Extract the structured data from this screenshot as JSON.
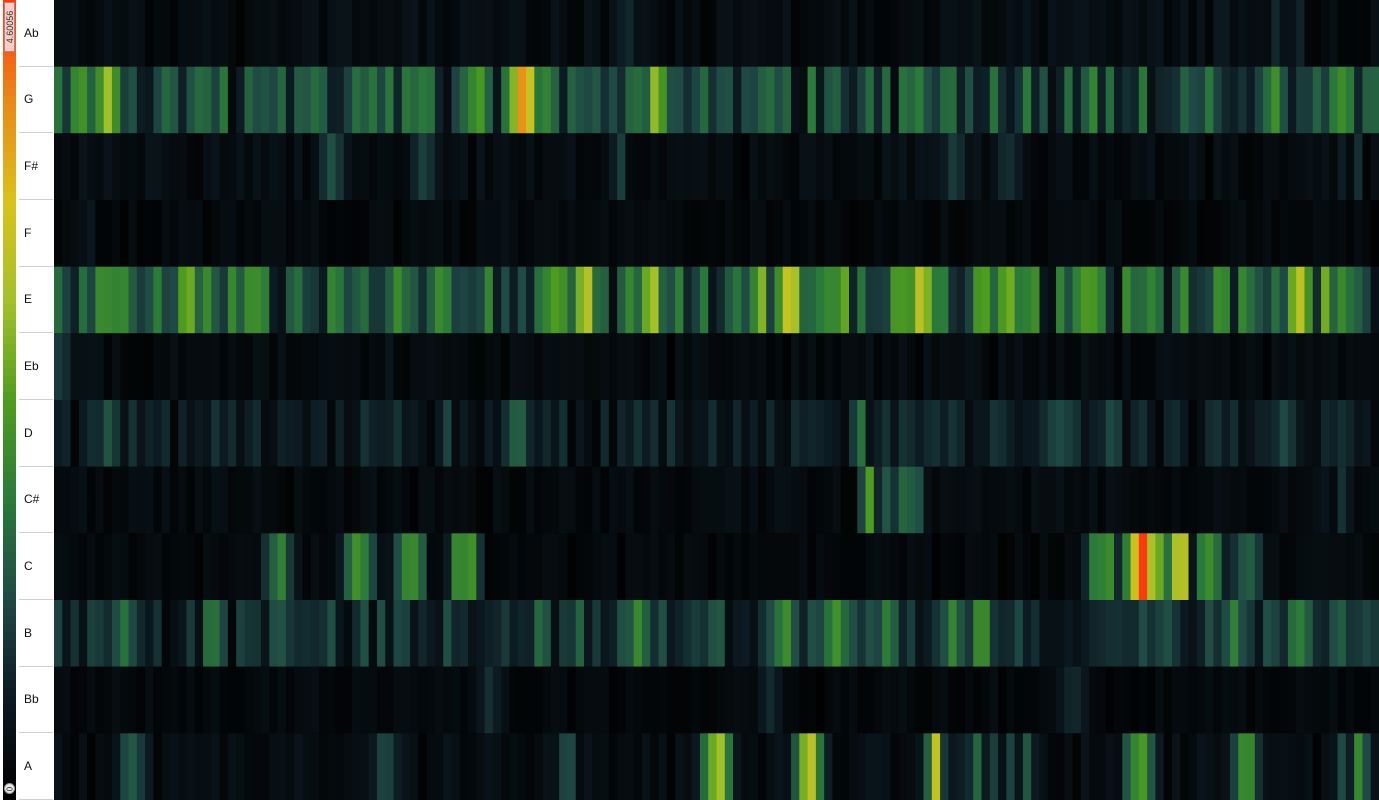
{
  "chart_data": {
    "type": "heatmap",
    "title": "",
    "scale": {
      "min_label": "0",
      "max_label": "4.60056",
      "min": 0,
      "max": 4.60056,
      "colors": [
        "#000000",
        "#0c1a22",
        "#1f4a45",
        "#2a7a3a",
        "#4f9d1e",
        "#a4c12a",
        "#dac21a",
        "#ea8a18",
        "#ff3a10"
      ]
    },
    "rows": [
      "Ab",
      "G",
      "F#",
      "F",
      "E",
      "Eb",
      "D",
      "C#",
      "C",
      "B",
      "Bb",
      "A"
    ],
    "columns": 160,
    "rows_data": {
      "Ab": {
        "base": 0.35,
        "peaks": [
          [
            0.43,
            0.8
          ],
          [
            0.88,
            0.6
          ],
          [
            0.93,
            1.5
          ]
        ]
      },
      "G": {
        "base": 1.4,
        "peaks": [
          [
            0.02,
            2.2
          ],
          [
            0.04,
            2.6
          ],
          [
            0.11,
            1.8
          ],
          [
            0.26,
            2.4
          ],
          [
            0.32,
            2.2
          ],
          [
            0.355,
            3.9
          ],
          [
            0.37,
            2.5
          ],
          [
            0.44,
            2.0
          ],
          [
            0.455,
            2.6
          ],
          [
            0.54,
            1.8
          ],
          [
            0.74,
            2.0
          ],
          [
            0.79,
            2.4
          ],
          [
            0.92,
            2.2
          ],
          [
            0.97,
            2.1
          ]
        ]
      },
      "F#": {
        "base": 0.35,
        "peaks": [
          [
            0.21,
            1.3
          ],
          [
            0.28,
            1.2
          ],
          [
            0.43,
            1.1
          ],
          [
            0.68,
            0.9
          ],
          [
            0.72,
            0.9
          ],
          [
            0.98,
            0.9
          ]
        ]
      },
      "F": {
        "base": 0.25,
        "peaks": [
          [
            0.03,
            0.5
          ],
          [
            0.34,
            0.4
          ],
          [
            0.98,
            0.4
          ]
        ]
      },
      "E": {
        "base": 1.6,
        "peaks": [
          [
            0.06,
            1.4
          ],
          [
            0.1,
            2.6
          ],
          [
            0.15,
            2.6
          ],
          [
            0.38,
            2.9
          ],
          [
            0.4,
            3.1
          ],
          [
            0.45,
            3.0
          ],
          [
            0.53,
            2.2
          ],
          [
            0.54,
            3.2
          ],
          [
            0.555,
            3.4
          ],
          [
            0.6,
            2.4
          ],
          [
            0.64,
            2.6
          ],
          [
            0.655,
            3.5
          ],
          [
            0.7,
            2.5
          ],
          [
            0.72,
            2.8
          ],
          [
            0.74,
            2.2
          ],
          [
            0.78,
            2.6
          ],
          [
            0.82,
            1.7
          ],
          [
            0.88,
            2.2
          ],
          [
            0.94,
            2.9
          ],
          [
            0.955,
            3.1
          ]
        ]
      },
      "Eb": {
        "base": 0.3,
        "peaks": [
          [
            0.005,
            0.9
          ],
          [
            0.26,
            0.6
          ],
          [
            0.62,
            0.4
          ]
        ]
      },
      "D": {
        "base": 0.7,
        "peaks": [
          [
            0.04,
            1.2
          ],
          [
            0.3,
            1.1
          ],
          [
            0.35,
            1.4
          ],
          [
            0.61,
            1.6
          ],
          [
            0.76,
            1.3
          ],
          [
            0.8,
            1.3
          ],
          [
            0.93,
            1.1
          ]
        ]
      },
      "C#": {
        "base": 0.3,
        "peaks": [
          [
            0.62,
            2.4
          ],
          [
            0.645,
            1.8
          ],
          [
            0.97,
            0.9
          ]
        ]
      },
      "C": {
        "base": 0.25,
        "peaks": [
          [
            0.17,
            1.8
          ],
          [
            0.23,
            2.4
          ],
          [
            0.27,
            2.6
          ],
          [
            0.31,
            2.5
          ],
          [
            0.79,
            2.3
          ],
          [
            0.8,
            2.6
          ],
          [
            0.82,
            4.3
          ],
          [
            0.83,
            3.4
          ],
          [
            0.85,
            3.0
          ],
          [
            0.87,
            2.5
          ],
          [
            0.9,
            1.6
          ]
        ]
      },
      "B": {
        "base": 1.0,
        "peaks": [
          [
            0.05,
            1.6
          ],
          [
            0.12,
            1.7
          ],
          [
            0.37,
            1.6
          ],
          [
            0.4,
            1.7
          ],
          [
            0.44,
            1.9
          ],
          [
            0.5,
            1.6
          ],
          [
            0.55,
            2.2
          ],
          [
            0.59,
            2.0
          ],
          [
            0.63,
            1.8
          ],
          [
            0.68,
            1.9
          ],
          [
            0.7,
            2.0
          ],
          [
            0.89,
            1.8
          ],
          [
            0.94,
            2.2
          ],
          [
            0.97,
            1.6
          ]
        ]
      },
      "Bb": {
        "base": 0.25,
        "peaks": [
          [
            0.33,
            0.8
          ],
          [
            0.54,
            0.7
          ],
          [
            0.77,
            0.9
          ]
        ]
      },
      "A": {
        "base": 0.35,
        "peaks": [
          [
            0.06,
            1.4
          ],
          [
            0.25,
            1.2
          ],
          [
            0.39,
            1.2
          ],
          [
            0.5,
            2.8
          ],
          [
            0.57,
            2.9
          ],
          [
            0.67,
            3.4
          ],
          [
            0.7,
            1.8
          ],
          [
            0.73,
            1.6
          ],
          [
            0.82,
            2.6
          ],
          [
            0.9,
            2.0
          ],
          [
            0.98,
            2.3
          ]
        ]
      }
    }
  }
}
